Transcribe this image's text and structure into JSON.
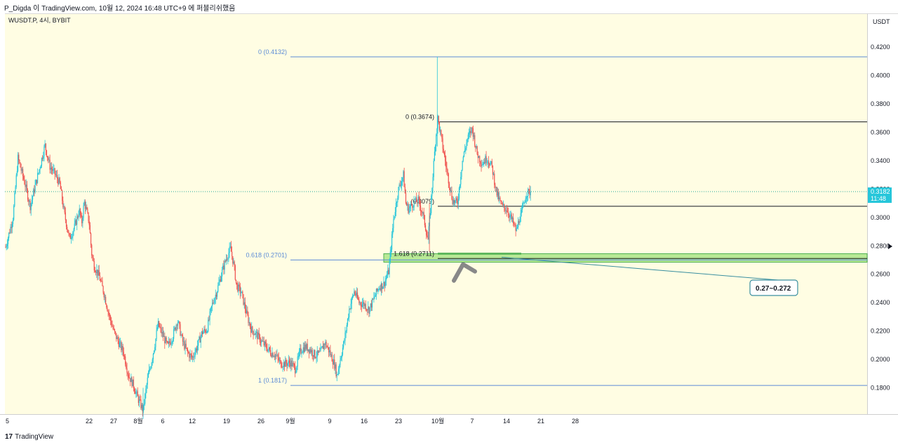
{
  "header": {
    "attribution": "P_Digda 이 TradingView.com, 10월 12, 2024 16:48 UTC+9 에 퍼블리쉬했음"
  },
  "symbol_label": "WUSDT.P, 4시, BYBIT",
  "currency": "USDT",
  "last_price": {
    "value": "0.3182",
    "countdown": "11:48"
  },
  "brand": "TradingView",
  "colors": {
    "up": "#26c6da",
    "down": "#ef5350",
    "fib_blue": "#5b8bd6",
    "fib_dark": "#131722",
    "zone": "#7ed957"
  },
  "chart_data": {
    "type": "candlestick",
    "ylim": [
      0.158,
      0.441
    ],
    "y_ticks": [
      0.18,
      0.2,
      0.22,
      0.24,
      0.26,
      0.28,
      0.3,
      0.32,
      0.34,
      0.36,
      0.38,
      0.4,
      0.42
    ],
    "y_tick_labels": [
      "0.1800",
      "0.2000",
      "0.2200",
      "0.2400",
      "0.2600",
      "0.2800",
      "0.3000",
      "0.3200",
      "0.3400",
      "0.3600",
      "0.3800",
      "0.4000",
      "0.4200"
    ],
    "x_range_days": [
      0,
      191
    ],
    "x_ticks": [
      {
        "label": "5",
        "day": 0
      },
      {
        "label": "22",
        "day": 17
      },
      {
        "label": "27",
        "day": 22
      },
      {
        "label": "8월",
        "day": 27
      },
      {
        "label": "6",
        "day": 32
      },
      {
        "label": "12",
        "day": 38
      },
      {
        "label": "19",
        "day": 45
      },
      {
        "label": "26",
        "day": 52
      },
      {
        "label": "9월",
        "day": 58
      },
      {
        "label": "9",
        "day": 66
      },
      {
        "label": "16",
        "day": 73
      },
      {
        "label": "23",
        "day": 80
      },
      {
        "label": "10월",
        "day": 88
      },
      {
        "label": "7",
        "day": 95
      },
      {
        "label": "14",
        "day": 102
      },
      {
        "label": "21",
        "day": 109
      },
      {
        "label": "28",
        "day": 116
      }
    ],
    "price_path": [
      [
        0,
        0.279
      ],
      [
        1.5,
        0.3
      ],
      [
        2.5,
        0.342
      ],
      [
        4,
        0.323
      ],
      [
        5,
        0.308
      ],
      [
        7,
        0.336
      ],
      [
        8,
        0.351
      ],
      [
        9,
        0.336
      ],
      [
        10,
        0.331
      ],
      [
        11,
        0.324
      ],
      [
        12,
        0.302
      ],
      [
        13,
        0.285
      ],
      [
        14,
        0.293
      ],
      [
        15,
        0.305
      ],
      [
        15.5,
        0.296
      ],
      [
        16,
        0.311
      ],
      [
        17,
        0.297
      ],
      [
        17.5,
        0.275
      ],
      [
        18,
        0.266
      ],
      [
        19,
        0.259
      ],
      [
        20,
        0.247
      ],
      [
        21,
        0.232
      ],
      [
        22,
        0.22
      ],
      [
        23,
        0.212
      ],
      [
        24,
        0.205
      ],
      [
        25,
        0.189
      ],
      [
        26,
        0.182
      ],
      [
        27,
        0.172
      ],
      [
        28,
        0.164
      ],
      [
        28.5,
        0.177
      ],
      [
        29,
        0.188
      ],
      [
        29.5,
        0.195
      ],
      [
        30.5,
        0.213
      ],
      [
        31,
        0.225
      ],
      [
        32,
        0.217
      ],
      [
        33,
        0.209
      ],
      [
        34,
        0.216
      ],
      [
        35,
        0.228
      ],
      [
        36,
        0.213
      ],
      [
        37,
        0.205
      ],
      [
        38,
        0.201
      ],
      [
        39,
        0.209
      ],
      [
        40,
        0.219
      ],
      [
        41,
        0.221
      ],
      [
        42,
        0.238
      ],
      [
        43,
        0.248
      ],
      [
        44,
        0.261
      ],
      [
        45,
        0.272
      ],
      [
        45.8,
        0.278
      ],
      [
        46.5,
        0.266
      ],
      [
        47,
        0.252
      ],
      [
        48,
        0.247
      ],
      [
        49,
        0.233
      ],
      [
        50,
        0.221
      ],
      [
        51,
        0.218
      ],
      [
        52,
        0.213
      ],
      [
        53,
        0.209
      ],
      [
        54,
        0.205
      ],
      [
        55,
        0.203
      ],
      [
        56,
        0.197
      ],
      [
        57,
        0.197
      ],
      [
        58,
        0.198
      ],
      [
        59,
        0.193
      ],
      [
        60,
        0.206
      ],
      [
        61,
        0.209
      ],
      [
        62,
        0.207
      ],
      [
        63,
        0.203
      ],
      [
        64,
        0.204
      ],
      [
        65,
        0.212
      ],
      [
        66,
        0.205
      ],
      [
        67,
        0.196
      ],
      [
        67.5,
        0.188
      ],
      [
        68,
        0.198
      ],
      [
        69,
        0.214
      ],
      [
        70,
        0.236
      ],
      [
        71,
        0.248
      ],
      [
        72,
        0.24
      ],
      [
        73,
        0.239
      ],
      [
        74,
        0.235
      ],
      [
        75,
        0.243
      ],
      [
        76,
        0.251
      ],
      [
        77,
        0.253
      ],
      [
        78,
        0.262
      ],
      [
        78.5,
        0.28
      ],
      [
        79,
        0.299
      ],
      [
        80,
        0.32
      ],
      [
        81,
        0.33
      ],
      [
        81.5,
        0.31
      ],
      [
        82,
        0.306
      ],
      [
        83,
        0.31
      ],
      [
        84,
        0.312
      ],
      [
        85,
        0.302
      ],
      [
        86,
        0.284
      ],
      [
        86.5,
        0.305
      ],
      [
        87,
        0.33
      ],
      [
        87.5,
        0.353
      ],
      [
        88,
        0.37
      ],
      [
        89,
        0.35
      ],
      [
        90,
        0.33
      ],
      [
        91,
        0.312
      ],
      [
        92,
        0.31
      ],
      [
        93,
        0.34
      ],
      [
        94,
        0.355
      ],
      [
        95,
        0.363
      ],
      [
        96,
        0.345
      ],
      [
        97,
        0.338
      ],
      [
        98,
        0.342
      ],
      [
        99,
        0.336
      ],
      [
        100,
        0.317
      ],
      [
        101,
        0.308
      ],
      [
        102,
        0.306
      ],
      [
        103,
        0.299
      ],
      [
        104,
        0.29
      ],
      [
        104.5,
        0.298
      ],
      [
        105,
        0.302
      ],
      [
        106,
        0.317
      ],
      [
        107,
        0.318
      ]
    ],
    "last_price": 0.3182
  },
  "fibs": [
    {
      "label": "0 (0.4132)",
      "price": 0.4132,
      "day_start": 58,
      "day_end": 191,
      "color": "blue"
    },
    {
      "label": "0.618 (0.2701)",
      "price": 0.2701,
      "day_start": 58,
      "day_end": 191,
      "color": "blue"
    },
    {
      "label": "1 (0.1817)",
      "price": 0.1817,
      "day_start": 58,
      "day_end": 191,
      "color": "blue"
    },
    {
      "label": "0 (0.3674)",
      "price": 0.3674,
      "day_start": 88,
      "day_end": 191,
      "color": "dark"
    },
    {
      "label": "(0.3079)",
      "price": 0.3079,
      "day_start": 88,
      "day_end": 191,
      "color": "dark"
    },
    {
      "label": "1.618 (0.2711)",
      "price": 0.2711,
      "day_start": 88,
      "day_end": 191,
      "color": "dark"
    }
  ],
  "zone": {
    "top": 0.2745,
    "bottom": 0.2685,
    "day_start": 77,
    "day_end": 191
  },
  "annotation": {
    "text": "0.27~0.272",
    "target_price": 0.272,
    "target_day": 101
  }
}
